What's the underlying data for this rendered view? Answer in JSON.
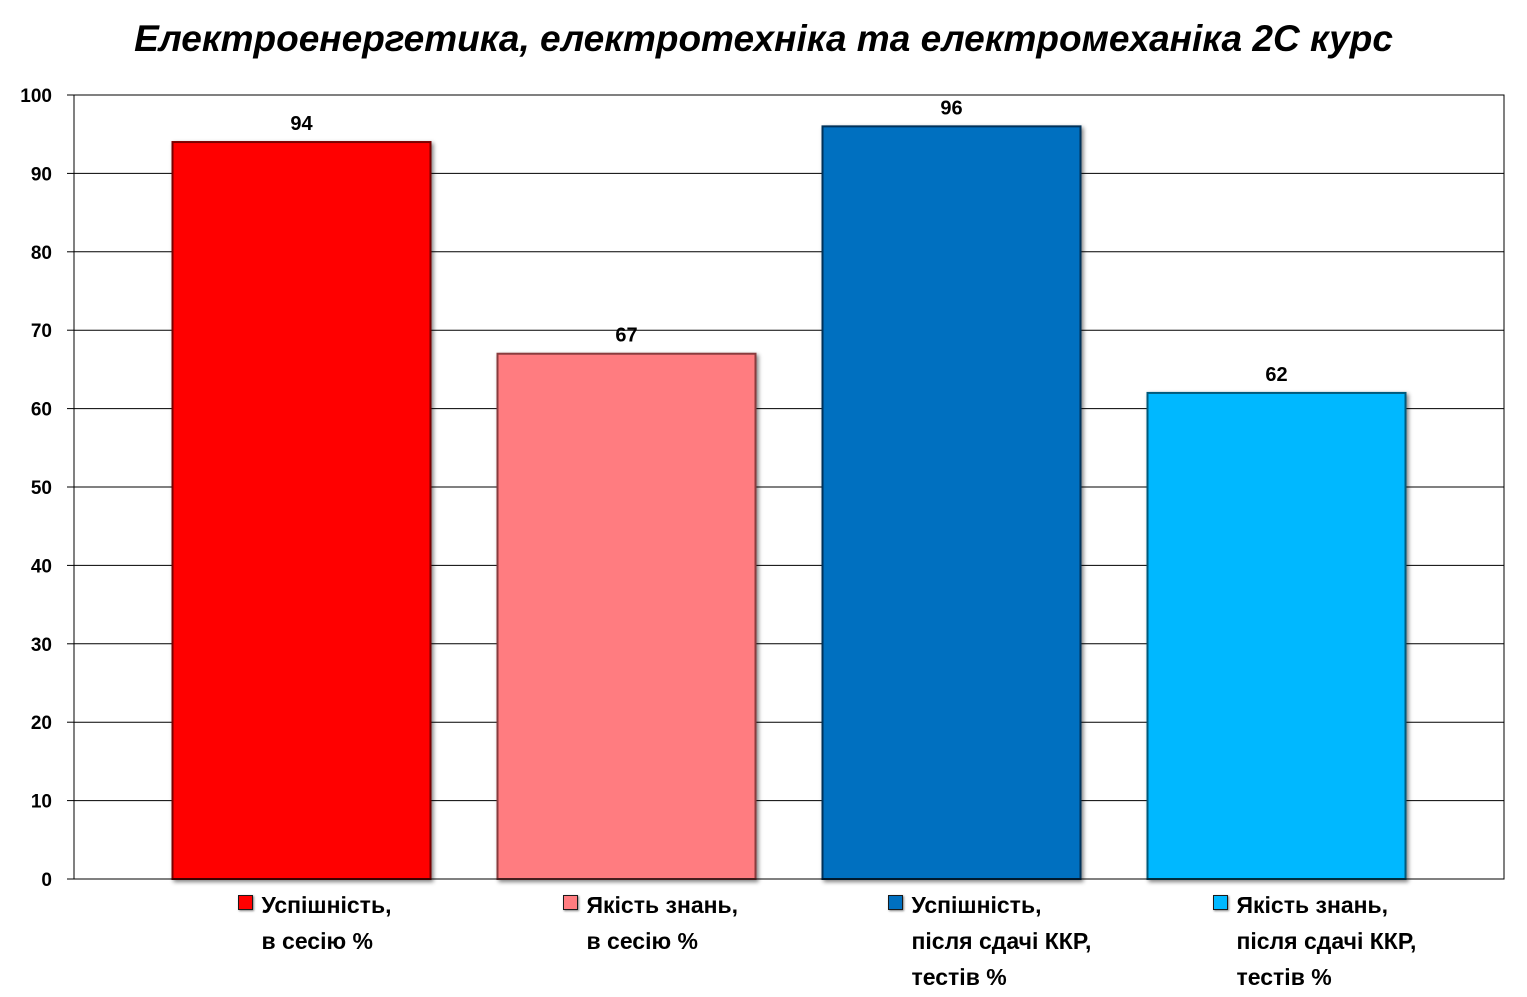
{
  "chart_data": {
    "type": "bar",
    "title": "Електроенергетика, електротехніка та електромеханіка 2С курс",
    "ylim": [
      0,
      100
    ],
    "yticks": [
      0,
      10,
      20,
      30,
      40,
      50,
      60,
      70,
      80,
      90,
      100
    ],
    "grid": true,
    "legend_position": "bottom",
    "series": [
      {
        "name": "Успішність,\nв сесію %",
        "value": 94,
        "color": "#ff0000",
        "edge": "#7a0000"
      },
      {
        "name": "Якість знань,\nв сесію %",
        "value": 67,
        "color": "#ff7c80",
        "edge": "#8a3a3c"
      },
      {
        "name": "Успішність,\nпісля сдачі ККР,\nтестів %",
        "value": 96,
        "color": "#0070c0",
        "edge": "#00325a"
      },
      {
        "name": "Якість знань,\nпісля сдачі ККР,\nтестів %",
        "value": 62,
        "color": "#00b8ff",
        "edge": "#005a7c"
      }
    ]
  }
}
